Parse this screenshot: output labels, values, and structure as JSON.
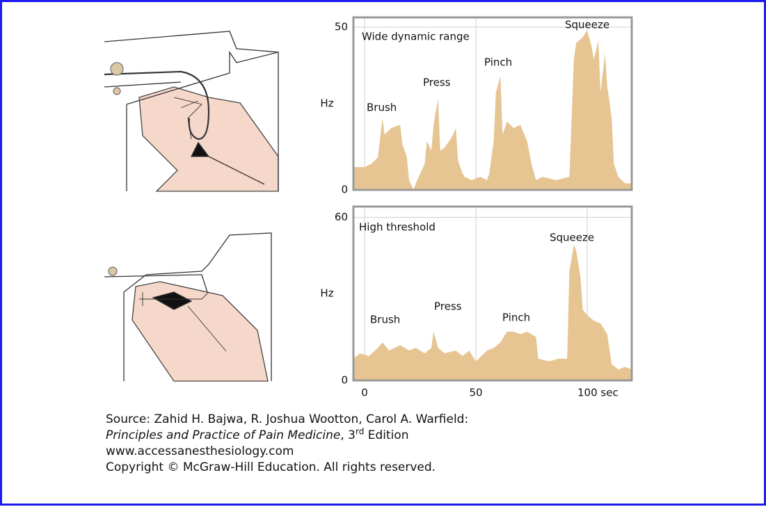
{
  "chart_data": [
    {
      "type": "area",
      "title": "Wide dynamic range",
      "y_label": "Hz",
      "annotations": [
        "Brush",
        "Press",
        "Pinch",
        "Squeeze"
      ],
      "x": [
        -5,
        0,
        3,
        6,
        8,
        9,
        12,
        16,
        17,
        19,
        20,
        22,
        23,
        27,
        28,
        30,
        31,
        33,
        34,
        36,
        39,
        41,
        42,
        44,
        45,
        48,
        52,
        55,
        56,
        58,
        59,
        61,
        62,
        64,
        67,
        70,
        73,
        75,
        77,
        80,
        86,
        92,
        94,
        95,
        98,
        100,
        102,
        103,
        105,
        106,
        108,
        109,
        111,
        112,
        114,
        117,
        120
      ],
      "series": [
        {
          "color": "#e6c592",
          "values": [
            7,
            7,
            8,
            10,
            22,
            17,
            19,
            20,
            14,
            10,
            3,
            0,
            2,
            8,
            15,
            12,
            20,
            28,
            12,
            13,
            16,
            19,
            9,
            5,
            4,
            3,
            4,
            3,
            5,
            15,
            30,
            35,
            17,
            21,
            19,
            20,
            15,
            8,
            3,
            4,
            3,
            4,
            40,
            45,
            47,
            49,
            44,
            40,
            46,
            30,
            42,
            32,
            22,
            8,
            4,
            2,
            2
          ]
        }
      ],
      "xlim": [
        -5,
        120
      ],
      "xticks": [
        0,
        50,
        100
      ],
      "xtick_labels": false,
      "ylim": [
        0,
        53
      ],
      "yticks": [
        0,
        50
      ],
      "grid": true
    },
    {
      "type": "area",
      "title": "High threshold",
      "y_label": "Hz",
      "annotations": [
        "Brush",
        "Press",
        "Pinch",
        "Squeeze"
      ],
      "x": [
        -5,
        -2,
        2,
        6,
        8,
        11,
        16,
        20,
        23,
        27,
        30,
        31,
        33,
        36,
        41,
        44,
        47,
        50,
        55,
        58,
        61,
        64,
        67,
        70,
        73,
        77,
        78,
        83,
        87,
        91,
        92,
        94,
        95,
        97,
        98,
        100,
        103,
        106,
        109,
        111,
        114,
        117,
        120
      ],
      "series": [
        {
          "color": "#e6c592",
          "values": [
            8,
            10,
            9,
            12,
            14,
            11,
            13,
            11,
            12,
            10,
            12,
            18,
            12,
            10,
            11,
            9,
            11,
            7,
            11,
            12,
            14,
            18,
            18,
            17,
            18,
            16,
            8,
            7,
            8,
            8,
            40,
            50,
            48,
            38,
            26,
            24,
            22,
            21,
            17,
            6,
            4,
            5,
            4
          ]
        }
      ],
      "xlim": [
        -5,
        120
      ],
      "xticks": [
        0,
        50,
        {
          "value": 100,
          "label": "100 sec"
        }
      ],
      "xtick_labels": true,
      "ylim": [
        0,
        64
      ],
      "yticks": [
        0,
        60
      ],
      "grid": true
    }
  ],
  "caption": {
    "line1": "Source: Zahid H. Bajwa, R. Joshua Wootton, Carol A. Warfield:",
    "book": "Principles and Practice of Pain Medicine",
    "edition_pre": ", 3",
    "edition_sup": "rd",
    "edition_post": " Edition",
    "url": "www.accessanesthesiology.com",
    "copyright": "Copyright © McGraw-Hill Education. All rights reserved."
  }
}
